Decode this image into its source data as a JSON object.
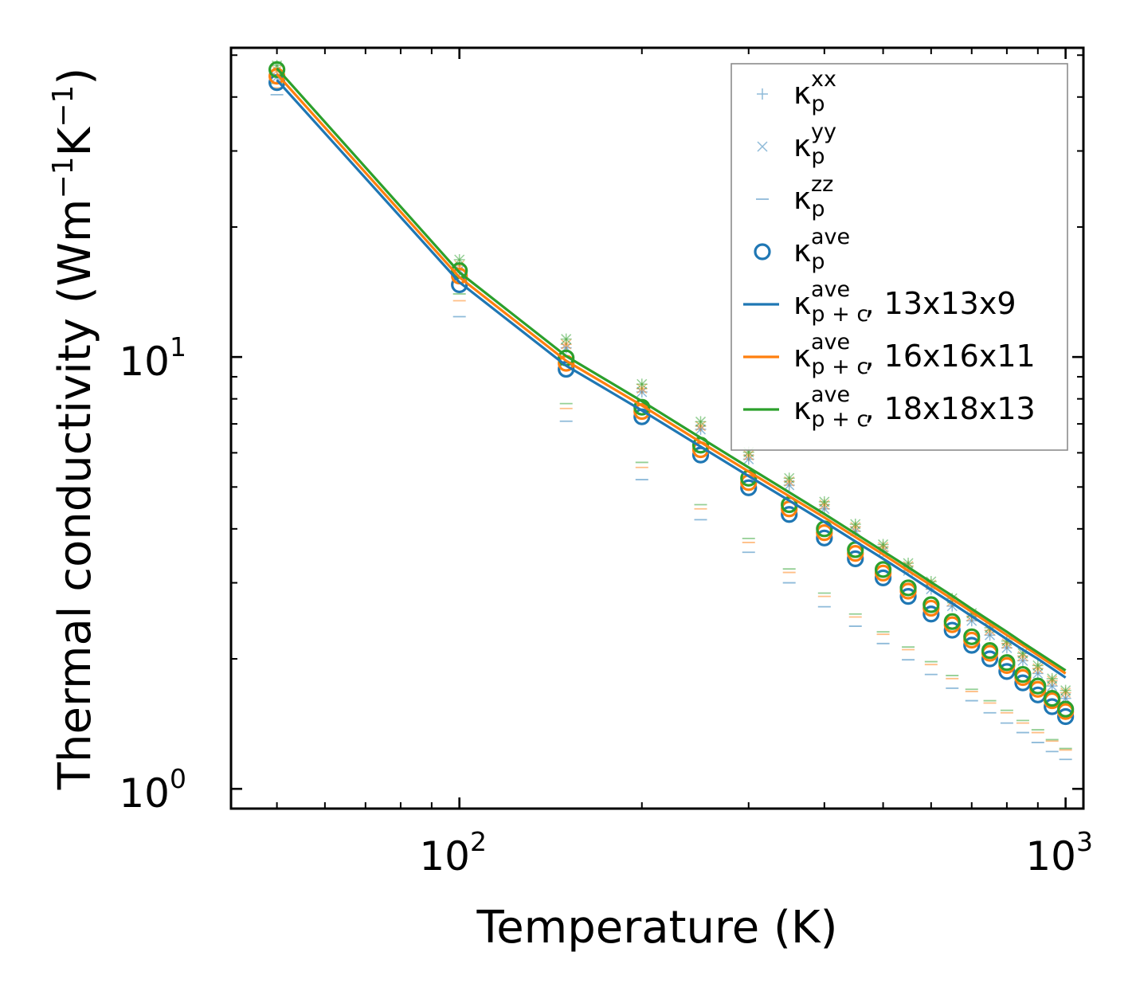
{
  "chart_data": {
    "type": "scatter",
    "title": "",
    "xlabel": "Temperature (K)",
    "ylabel": "Thermal conductivity (Wm",
    "ylabel_sup1": "−1",
    "ylabel_mid": "K",
    "ylabel_sup2": "−1",
    "ylabel_close": ")",
    "xscale": "log",
    "yscale": "log",
    "xlim": [
      42,
      1070
    ],
    "ylim": [
      0.9,
      52
    ],
    "x_ticks": [
      {
        "value": 100,
        "base": "10",
        "exp": "2"
      },
      {
        "value": 1000,
        "base": "10",
        "exp": "3"
      }
    ],
    "y_ticks": [
      {
        "value": 1,
        "base": "10",
        "exp": "0"
      },
      {
        "value": 10,
        "base": "10",
        "exp": "1"
      }
    ],
    "x": [
      50,
      100,
      150,
      200,
      250,
      300,
      350,
      400,
      450,
      500,
      550,
      600,
      650,
      700,
      750,
      800,
      850,
      900,
      950,
      1000
    ],
    "colors": {
      "blue": "#1f77b4",
      "orange": "#ff7f0e",
      "green": "#2ca02c"
    },
    "meshes": [
      {
        "mesh": "13x13x9",
        "color": "#1f77b4",
        "kxx": [
          44.5,
          15.9,
          10.5,
          8.3,
          6.8,
          5.8,
          5.05,
          4.45,
          3.95,
          3.55,
          3.2,
          2.9,
          2.65,
          2.45,
          2.27,
          2.12,
          1.98,
          1.85,
          1.73,
          1.62
        ],
        "kyy": [
          44.5,
          15.9,
          10.5,
          8.3,
          6.8,
          5.8,
          5.05,
          4.45,
          3.95,
          3.55,
          3.2,
          2.9,
          2.65,
          2.45,
          2.27,
          2.12,
          1.98,
          1.85,
          1.73,
          1.62
        ],
        "kzz": [
          40.5,
          12.4,
          7.1,
          5.2,
          4.2,
          3.53,
          3.0,
          2.64,
          2.38,
          2.17,
          1.99,
          1.84,
          1.71,
          1.6,
          1.5,
          1.42,
          1.35,
          1.28,
          1.22,
          1.17
        ],
        "kave": [
          43.2,
          14.7,
          9.37,
          7.27,
          5.93,
          4.98,
          4.32,
          3.81,
          3.41,
          3.08,
          2.79,
          2.54,
          2.33,
          2.15,
          2.0,
          1.87,
          1.76,
          1.65,
          1.55,
          1.47
        ],
        "kpc": [
          43.8,
          14.9,
          9.55,
          7.52,
          6.2,
          5.3,
          4.65,
          4.15,
          3.74,
          3.41,
          3.13,
          2.89,
          2.69,
          2.51,
          2.36,
          2.22,
          2.1,
          2.0,
          1.9,
          1.81
        ]
      },
      {
        "mesh": "16x16x11",
        "color": "#ff7f0e",
        "kxx": [
          46.0,
          16.3,
          10.7,
          8.45,
          6.92,
          5.92,
          5.15,
          4.55,
          4.04,
          3.63,
          3.28,
          2.97,
          2.72,
          2.51,
          2.33,
          2.17,
          2.03,
          1.9,
          1.78,
          1.67
        ],
        "kyy": [
          46.0,
          16.3,
          10.7,
          8.45,
          6.92,
          5.92,
          5.15,
          4.55,
          4.04,
          3.63,
          3.28,
          2.97,
          2.72,
          2.51,
          2.33,
          2.17,
          2.03,
          1.9,
          1.78,
          1.67
        ],
        "kzz": [
          42.0,
          13.5,
          7.6,
          5.55,
          4.45,
          3.72,
          3.17,
          2.79,
          2.5,
          2.28,
          2.1,
          1.94,
          1.8,
          1.68,
          1.58,
          1.5,
          1.42,
          1.35,
          1.29,
          1.23
        ],
        "kave": [
          44.7,
          15.4,
          9.67,
          7.48,
          6.1,
          5.12,
          4.45,
          3.92,
          3.51,
          3.16,
          2.87,
          2.62,
          2.4,
          2.21,
          2.06,
          1.93,
          1.81,
          1.7,
          1.6,
          1.51
        ],
        "kpc": [
          45.2,
          15.3,
          9.8,
          7.72,
          6.35,
          5.43,
          4.76,
          4.25,
          3.83,
          3.49,
          3.2,
          2.96,
          2.75,
          2.57,
          2.41,
          2.27,
          2.15,
          2.04,
          1.94,
          1.85
        ]
      },
      {
        "mesh": "18x18x13",
        "color": "#2ca02c",
        "kxx": [
          47.3,
          16.8,
          11.0,
          8.65,
          7.08,
          6.02,
          5.24,
          4.62,
          4.1,
          3.68,
          3.33,
          3.02,
          2.76,
          2.55,
          2.36,
          2.2,
          2.06,
          1.93,
          1.8,
          1.69
        ],
        "kyy": [
          47.3,
          16.8,
          11.0,
          8.65,
          7.08,
          6.02,
          5.24,
          4.62,
          4.1,
          3.68,
          3.33,
          3.02,
          2.76,
          2.55,
          2.36,
          2.2,
          2.06,
          1.93,
          1.8,
          1.69
        ],
        "kzz": [
          43.0,
          14.0,
          7.8,
          5.7,
          4.55,
          3.8,
          3.23,
          2.84,
          2.54,
          2.31,
          2.13,
          1.97,
          1.83,
          1.7,
          1.6,
          1.52,
          1.44,
          1.37,
          1.3,
          1.24
        ],
        "kave": [
          46.3,
          15.85,
          9.95,
          7.65,
          6.25,
          5.24,
          4.55,
          4.0,
          3.58,
          3.22,
          2.92,
          2.67,
          2.44,
          2.25,
          2.09,
          1.96,
          1.84,
          1.73,
          1.62,
          1.53
        ],
        "kpc": [
          46.6,
          15.7,
          10.05,
          7.9,
          6.5,
          5.55,
          4.86,
          4.33,
          3.9,
          3.55,
          3.26,
          3.01,
          2.8,
          2.61,
          2.45,
          2.31,
          2.18,
          2.07,
          1.97,
          1.88
        ]
      }
    ],
    "legend": {
      "location": "top-right",
      "entries": [
        {
          "symbol": "κ",
          "sub": "p",
          "sup": "xx",
          "suffix": "",
          "marker": "plus"
        },
        {
          "symbol": "κ",
          "sub": "p",
          "sup": "yy",
          "suffix": "",
          "marker": "cross"
        },
        {
          "symbol": "κ",
          "sub": "p",
          "sup": "zz",
          "suffix": "",
          "marker": "dash"
        },
        {
          "symbol": "κ",
          "sub": "p",
          "sup": "ave",
          "suffix": "",
          "marker": "circle"
        },
        {
          "symbol": "κ",
          "sub": "p + c",
          "sup": "ave",
          "suffix": ", 13x13x9",
          "marker": "line-blue"
        },
        {
          "symbol": "κ",
          "sub": "p + c",
          "sup": "ave",
          "suffix": ", 16x16x11",
          "marker": "line-orange"
        },
        {
          "symbol": "κ",
          "sub": "p + c",
          "sup": "ave",
          "suffix": ", 18x18x13",
          "marker": "line-green"
        }
      ]
    }
  }
}
